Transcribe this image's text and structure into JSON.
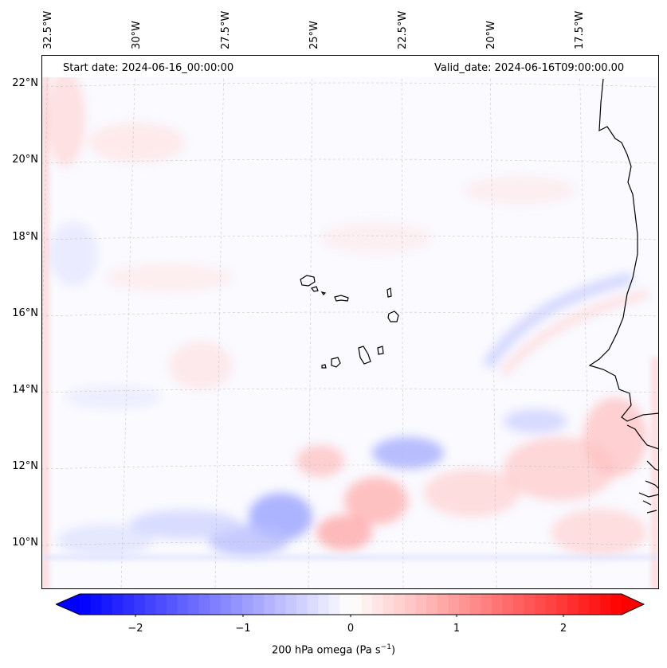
{
  "header": {
    "start": "Start date: 2024-06-16_00:00:00",
    "valid": "Valid_date: 2024-06-16T09:00:00.00"
  },
  "map": {
    "lon_labels": [
      "32.5°W",
      "30°W",
      "27.5°W",
      "25°W",
      "22.5°W",
      "20°W",
      "17.5°W"
    ],
    "lat_labels": [
      "22°N",
      "20°N",
      "18°N",
      "16°N",
      "14°N",
      "12°N",
      "10°N"
    ]
  },
  "colorbar": {
    "ticks": [
      "−2",
      "−1",
      "0",
      "1",
      "2"
    ],
    "label": "200 hPa omega (Pa s",
    "label_sup": "−1",
    "label_end": ")",
    "min": -2.6,
    "max": 2.6,
    "colors": {
      "neg": "#0000ff",
      "zero": "#ffffff",
      "pos": "#ff0000"
    }
  }
}
